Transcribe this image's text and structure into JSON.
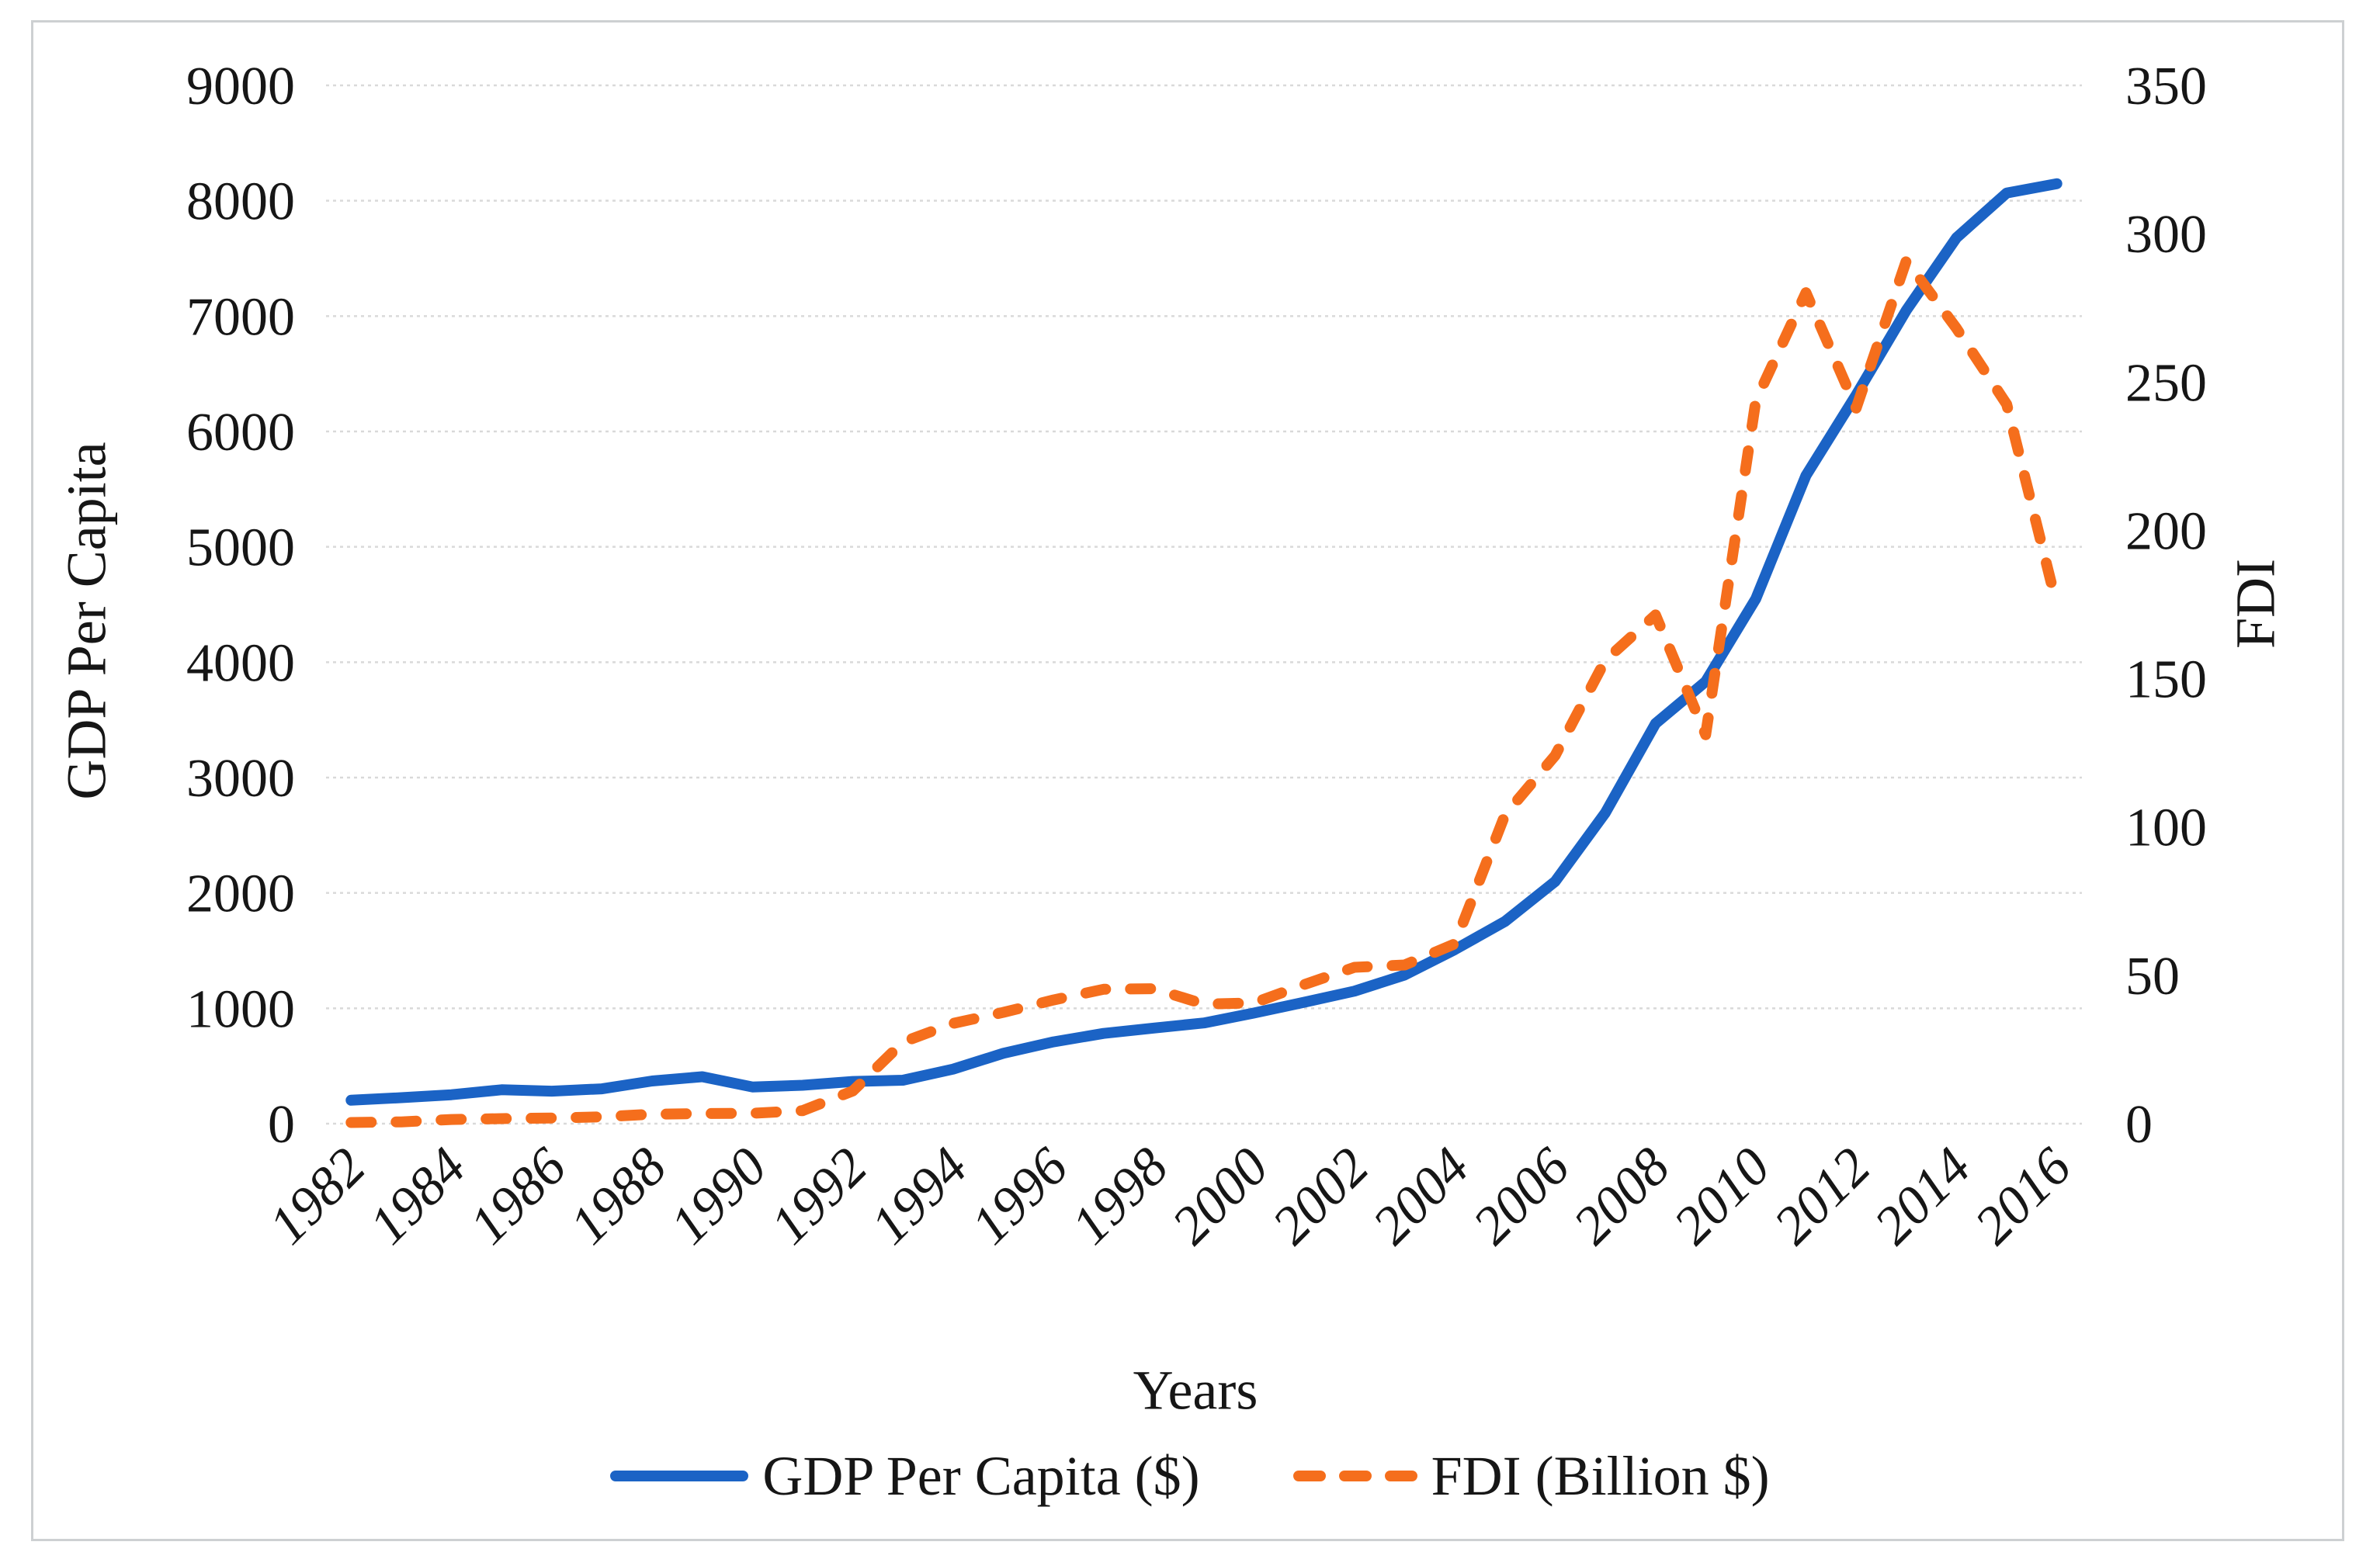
{
  "figure": {
    "border_color": "#cdd0d2",
    "background": "#ffffff"
  },
  "axes": {
    "left_title": "GDP Per Capita",
    "right_title": "FDI",
    "x_title": "Years"
  },
  "legend": {
    "gdp_label": "GDP Per Capita ($)",
    "fdi_label": "FDI (Billion $)"
  },
  "colors": {
    "gdp_blue": "#1b63c5",
    "fdi_orange": "#f56e1c",
    "gridline": "#d9d9d9",
    "text": "#161616"
  },
  "chart_data": {
    "type": "line",
    "title": "",
    "xlabel": "Years",
    "ylabel_left": "GDP Per Capita",
    "ylabel_right": "FDI",
    "grid": "horizontal-dotted",
    "legend_position": "bottom",
    "x": [
      1982,
      1983,
      1984,
      1985,
      1986,
      1987,
      1988,
      1989,
      1990,
      1991,
      1992,
      1993,
      1994,
      1995,
      1996,
      1997,
      1998,
      1999,
      2000,
      2001,
      2002,
      2003,
      2004,
      2005,
      2006,
      2007,
      2008,
      2009,
      2010,
      2011,
      2012,
      2013,
      2014,
      2015,
      2016
    ],
    "x_tick_labels": [
      "1982",
      "1984",
      "1986",
      "1988",
      "1990",
      "1992",
      "1994",
      "1996",
      "1998",
      "2000",
      "2002",
      "2004",
      "2006",
      "2008",
      "2010",
      "2012",
      "2014",
      "2016"
    ],
    "y_left": {
      "min": 0,
      "max": 9000,
      "step": 1000
    },
    "y_right": {
      "min": 0,
      "max": 350,
      "step": 50
    },
    "series": [
      {
        "name": "GDP Per Capita ($)",
        "axis": "left",
        "style": "solid",
        "color": "#1b63c5",
        "values": [
          203,
          225,
          251,
          294,
          282,
          302,
          370,
          407,
          318,
          333,
          366,
          377,
          473,
          610,
          709,
          782,
          829,
          873,
          959,
          1053,
          1149,
          1289,
          1509,
          1753,
          2099,
          2694,
          3468,
          3832,
          4550,
          5618,
          6317,
          7051,
          7679,
          8067,
          8148
        ]
      },
      {
        "name": "FDI (Billion $)",
        "axis": "right",
        "style": "dashed",
        "color": "#f56e1c",
        "values": [
          0.4,
          0.6,
          1.4,
          1.7,
          1.9,
          2.3,
          3.2,
          3.4,
          3.5,
          4.4,
          11.0,
          27.5,
          33.8,
          37.5,
          41.7,
          45.3,
          45.5,
          40.3,
          40.7,
          46.9,
          52.7,
          53.5,
          60.6,
          104.1,
          124.1,
          156.2,
          171.5,
          131.1,
          243.7,
          280.1,
          241.2,
          290.9,
          268.1,
          242.5,
          174.7
        ]
      }
    ]
  }
}
